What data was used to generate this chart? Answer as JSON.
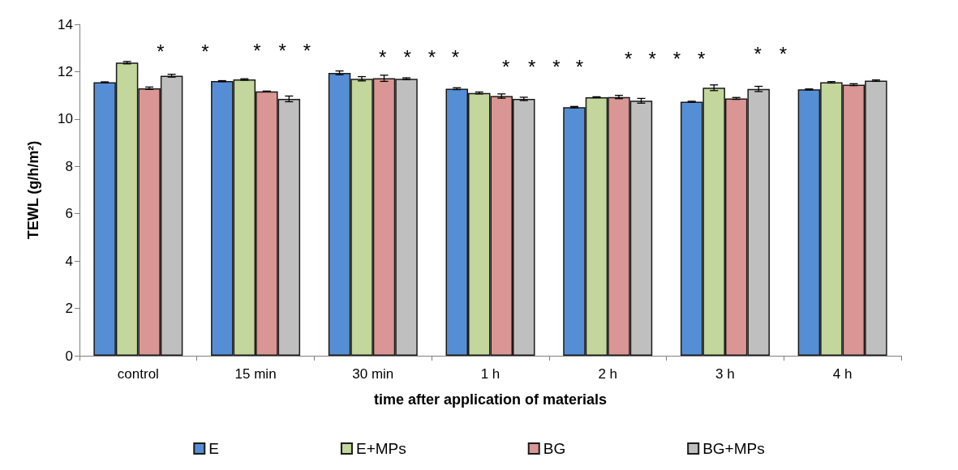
{
  "chart_data": {
    "type": "bar",
    "xlabel": "time after application of materials",
    "ylabel": "TEWL (g/h/m²)",
    "categories": [
      "control",
      "15 min",
      "30 min",
      "1 h",
      "2 h",
      "3 h",
      "4 h"
    ],
    "series": [
      {
        "name": "E",
        "color": "#558ed5",
        "values": [
          11.55,
          11.6,
          11.95,
          11.28,
          10.5,
          10.73,
          11.25
        ],
        "errors": [
          0.02,
          0.02,
          0.08,
          0.04,
          0.03,
          0.02,
          0.02
        ]
      },
      {
        "name": "E+MPs",
        "color": "#c3d69b",
        "values": [
          12.38,
          11.67,
          11.7,
          11.1,
          10.92,
          11.32,
          11.55
        ],
        "errors": [
          0.05,
          0.03,
          0.09,
          0.04,
          0.02,
          0.12,
          0.03
        ]
      },
      {
        "name": "BG",
        "color": "#d99694",
        "values": [
          11.3,
          11.17,
          11.72,
          10.97,
          10.93,
          10.87,
          11.45
        ],
        "errors": [
          0.05,
          0.01,
          0.13,
          0.09,
          0.07,
          0.04,
          0.04
        ]
      },
      {
        "name": "BG+MPs",
        "color": "#bfbfbf",
        "values": [
          11.83,
          10.85,
          11.7,
          10.85,
          10.77,
          11.27,
          11.62
        ],
        "errors": [
          0.06,
          0.12,
          0.04,
          0.07,
          0.1,
          0.11,
          0.03
        ]
      }
    ],
    "ylim": [
      0,
      14
    ],
    "yticks": [
      0,
      2,
      4,
      6,
      8,
      10,
      12,
      14
    ],
    "grid": false,
    "legend": "bottom",
    "annotations": [
      "*",
      "*",
      "*",
      "*",
      "*",
      "*",
      "*",
      "*",
      "*",
      "*",
      "*",
      "*",
      "*",
      "*",
      "*",
      "*",
      "*",
      "*",
      "*"
    ]
  }
}
